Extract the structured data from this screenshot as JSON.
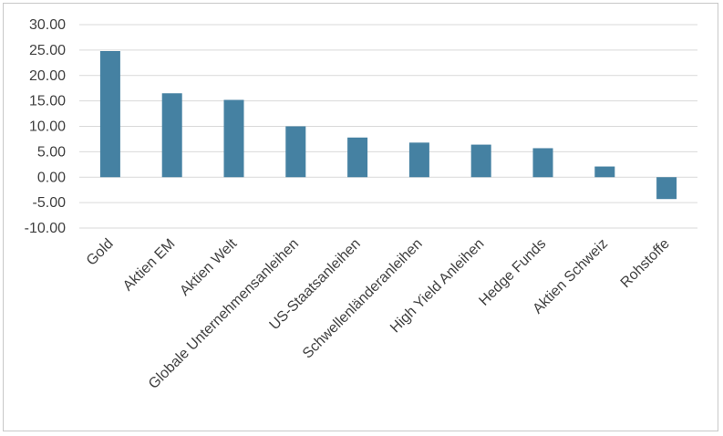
{
  "chart_data": {
    "type": "bar",
    "title": "",
    "xlabel": "",
    "ylabel": "",
    "categories": [
      "Gold",
      "Aktien EM",
      "Aktien Welt",
      "Globale Unternehmensanleihen",
      "US-Staatsanleihen",
      "Schwellenländeranleihen",
      "High Yield Anleihen",
      "Hedge Funds",
      "Aktien Schweiz",
      "Rohstoffe"
    ],
    "values": [
      24.8,
      16.5,
      15.2,
      10.0,
      7.8,
      6.8,
      6.4,
      5.7,
      2.1,
      -4.3
    ],
    "ylim": [
      -10,
      30
    ],
    "yticks": [
      "30.00",
      "25.00",
      "20.00",
      "15.00",
      "10.00",
      "5.00",
      "0.00",
      "-5.00",
      "-10.00"
    ],
    "ytick_values": [
      30,
      25,
      20,
      15,
      10,
      5,
      0,
      -5,
      -10
    ],
    "grid": true,
    "legend": "none",
    "colors": {
      "bar": "#4581a2",
      "grid": "#d9d9d9",
      "text": "#404040"
    }
  }
}
